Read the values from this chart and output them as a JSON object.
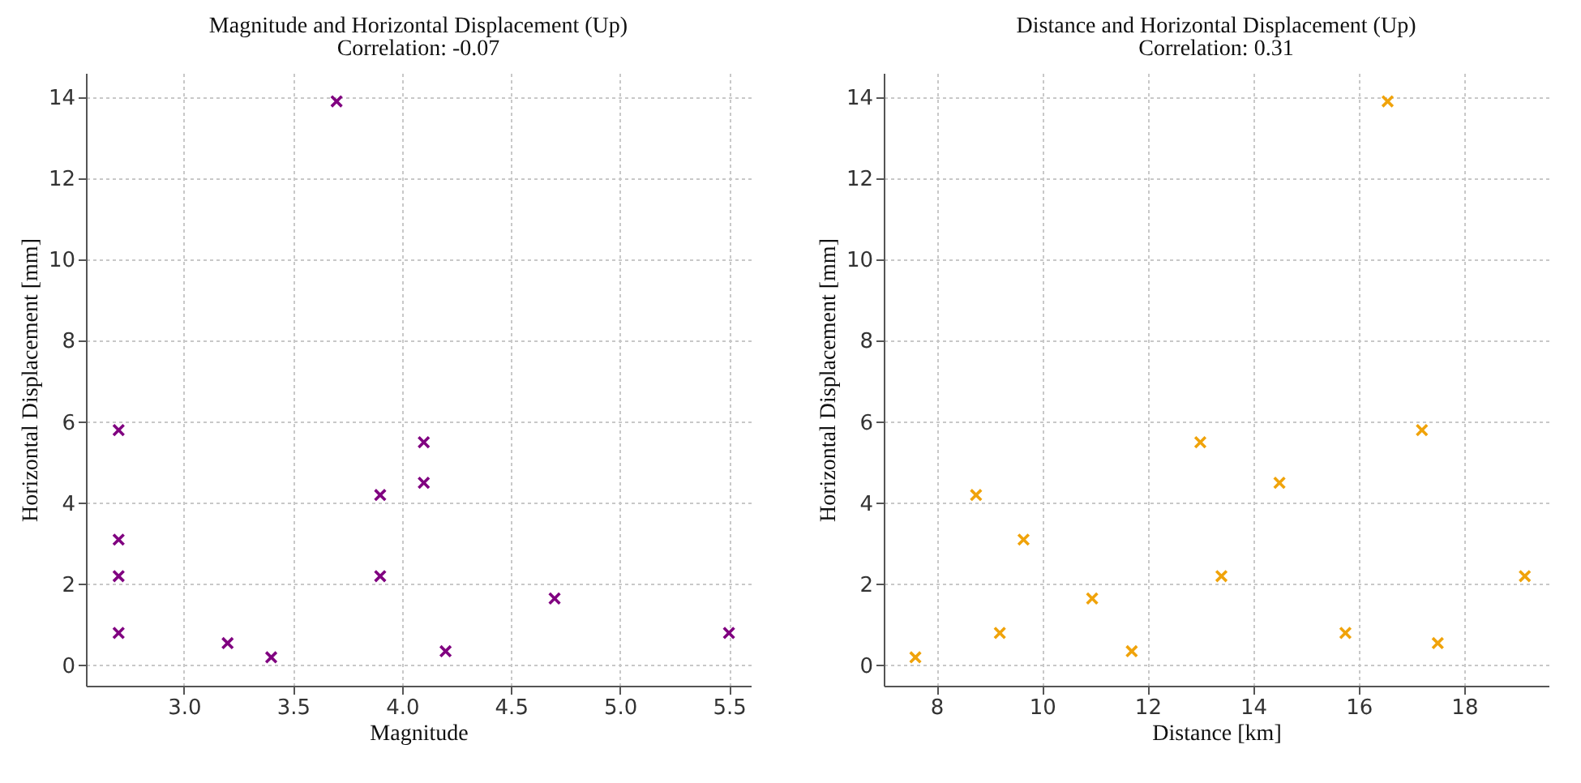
{
  "chart_data": [
    {
      "type": "scatter",
      "title": "Magnitude and Horizontal Displacement (Up)",
      "subtitle": "Correlation: -0.07",
      "xlabel": "Magnitude",
      "ylabel": "Horizontal Displacement [mm]",
      "x": [
        2.7,
        2.7,
        2.7,
        2.7,
        3.2,
        3.4,
        3.7,
        3.9,
        3.9,
        4.1,
        4.1,
        4.2,
        4.7,
        5.5
      ],
      "series": [
        {
          "color": "#800080",
          "values": [
            5.8,
            3.1,
            2.2,
            0.8,
            0.55,
            0.2,
            13.9,
            4.2,
            2.2,
            5.5,
            4.5,
            0.35,
            1.65,
            0.8
          ]
        }
      ],
      "xlim": [
        2.55,
        5.6
      ],
      "xticks": [
        {
          "value": 3,
          "label": "3.0"
        },
        3.5,
        {
          "value": 4,
          "label": "4.0"
        },
        4.5,
        {
          "value": 5,
          "label": "5.0"
        },
        5.5
      ],
      "ylim": [
        -0.5,
        14.6
      ],
      "yticks": [
        0,
        2,
        4,
        6,
        8,
        10,
        12,
        14
      ],
      "grid": true,
      "marker": "cross"
    },
    {
      "type": "scatter",
      "title": "Distance and Horizontal Displacement (Up)",
      "subtitle": "Correlation: 0.31",
      "xlabel": "Distance [km]",
      "ylabel": "Horizontal Displacement [mm]",
      "x": [
        7.6,
        8.75,
        9.2,
        9.65,
        10.95,
        11.7,
        13.0,
        13.4,
        14.5,
        15.75,
        16.55,
        17.2,
        17.5,
        19.15
      ],
      "series": [
        {
          "color": "#f0a30a",
          "values": [
            0.2,
            4.2,
            0.8,
            3.1,
            1.65,
            0.35,
            5.5,
            2.2,
            4.5,
            0.8,
            13.9,
            5.8,
            0.55,
            2.2
          ]
        }
      ],
      "xlim": [
        7.0,
        19.6
      ],
      "xticks": [
        8,
        10,
        12,
        14,
        16,
        18
      ],
      "ylim": [
        -0.5,
        14.6
      ],
      "yticks": [
        0,
        2,
        4,
        6,
        8,
        10,
        12,
        14
      ],
      "grid": true,
      "marker": "cross"
    }
  ]
}
